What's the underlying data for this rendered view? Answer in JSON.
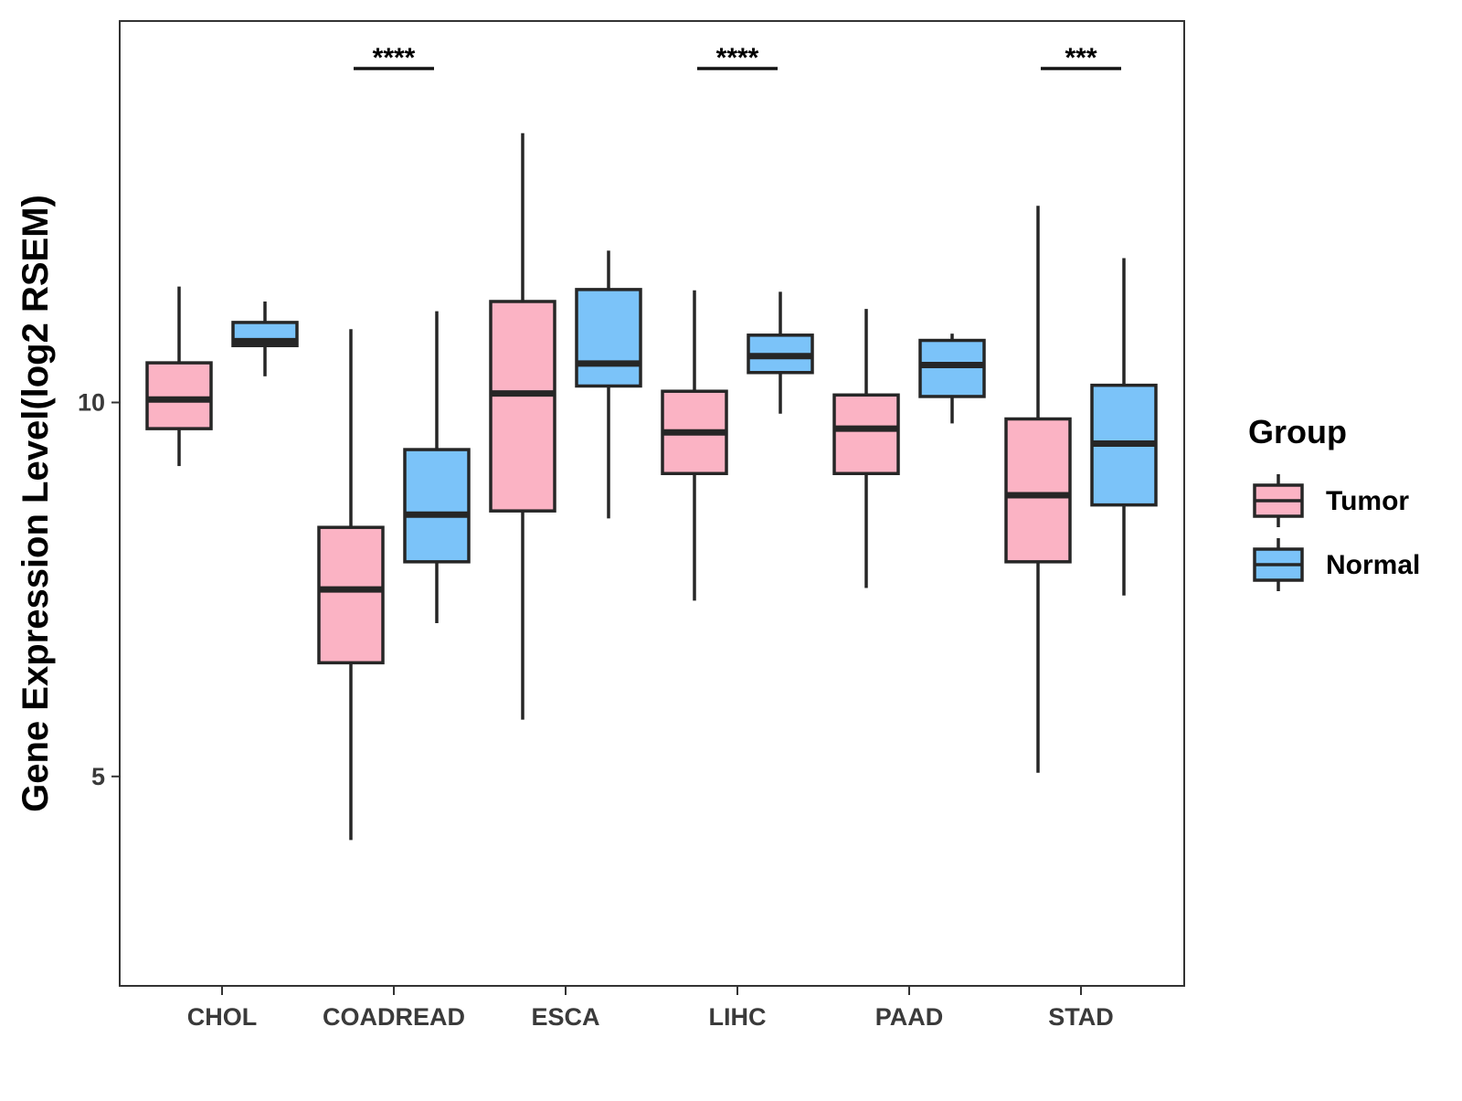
{
  "chart_data": {
    "type": "boxplot",
    "title": "",
    "xlabel": "",
    "ylabel": "Gene Expression Level(log2 RSEM)",
    "ylim": [
      2.2,
      15.1
    ],
    "yticks": [
      5,
      10
    ],
    "grid": false,
    "categories": [
      "CHOL",
      "COADREAD",
      "ESCA",
      "LIHC",
      "PAAD",
      "STAD"
    ],
    "legend": {
      "title": "Group",
      "position": "right",
      "entries": [
        {
          "name": "Tumor",
          "color": "#fbb3c4"
        },
        {
          "name": "Normal",
          "color": "#7bc3f9"
        }
      ]
    },
    "series": [
      {
        "name": "Tumor",
        "color": "#fbb3c4",
        "boxes": [
          {
            "category": "CHOL",
            "min": 9.15,
            "q1": 9.65,
            "median": 10.04,
            "q3": 10.53,
            "max": 11.55
          },
          {
            "category": "COADREAD",
            "min": 4.15,
            "q1": 6.52,
            "median": 7.5,
            "q3": 8.33,
            "max": 10.98
          },
          {
            "category": "ESCA",
            "min": 5.76,
            "q1": 8.55,
            "median": 10.12,
            "q3": 11.35,
            "max": 13.6
          },
          {
            "category": "LIHC",
            "min": 7.35,
            "q1": 9.05,
            "median": 9.6,
            "q3": 10.15,
            "max": 11.5
          },
          {
            "category": "PAAD",
            "min": 7.52,
            "q1": 9.05,
            "median": 9.65,
            "q3": 10.1,
            "max": 11.25
          },
          {
            "category": "STAD",
            "min": 5.05,
            "q1": 7.87,
            "median": 8.76,
            "q3": 9.78,
            "max": 12.63
          }
        ]
      },
      {
        "name": "Normal",
        "color": "#7bc3f9",
        "boxes": [
          {
            "category": "CHOL",
            "min": 10.35,
            "q1": 10.76,
            "median": 10.82,
            "q3": 11.07,
            "max": 11.35
          },
          {
            "category": "COADREAD",
            "min": 7.05,
            "q1": 7.87,
            "median": 8.5,
            "q3": 9.37,
            "max": 11.22
          },
          {
            "category": "ESCA",
            "min": 8.45,
            "q1": 10.22,
            "median": 10.52,
            "q3": 11.51,
            "max": 12.03
          },
          {
            "category": "LIHC",
            "min": 9.85,
            "q1": 10.4,
            "median": 10.62,
            "q3": 10.9,
            "max": 11.48
          },
          {
            "category": "PAAD",
            "min": 9.72,
            "q1": 10.08,
            "median": 10.5,
            "q3": 10.83,
            "max": 10.92
          },
          {
            "category": "STAD",
            "min": 7.42,
            "q1": 8.63,
            "median": 9.45,
            "q3": 10.23,
            "max": 11.93
          }
        ]
      }
    ],
    "annotations": [
      {
        "category": "COADREAD",
        "label": "****"
      },
      {
        "category": "LIHC",
        "label": "****"
      },
      {
        "category": "STAD",
        "label": "***"
      }
    ]
  }
}
